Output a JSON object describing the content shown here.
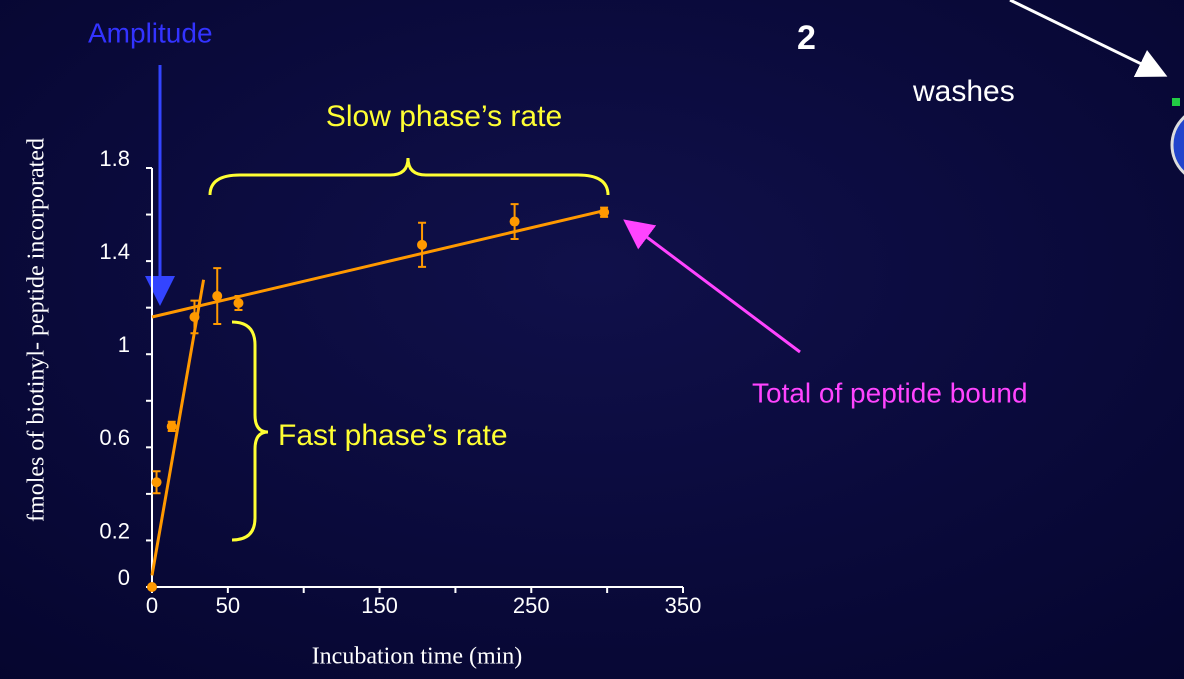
{
  "chart_data": {
    "type": "scatter",
    "xlabel": "Incubation time (min)",
    "ylabel": "fmoles of biotinyl- peptide incorporated",
    "xlim": [
      0,
      350
    ],
    "xticks": [
      0,
      50,
      150,
      250,
      350
    ],
    "xminor": [
      100,
      200,
      300
    ],
    "ylim": [
      0,
      1.8
    ],
    "yticks": [
      0,
      0.2,
      0.6,
      1,
      1.4,
      1.8
    ],
    "yminor": [
      0.4,
      0.8,
      1.2,
      1.6
    ],
    "series": [
      {
        "color": "#ff9900",
        "x": [
          0,
          3,
          13,
          28,
          43,
          57,
          178,
          239,
          298
        ],
        "values": [
          0,
          0.45,
          0.69,
          1.16,
          1.25,
          1.22,
          1.47,
          1.57,
          1.61
        ],
        "errors": [
          0,
          0.047,
          0.02,
          0.07,
          0.12,
          0.03,
          0.095,
          0.075,
          0.02
        ]
      }
    ],
    "fits": [
      {
        "color": "#ff9900",
        "x": [
          0,
          300
        ],
        "values": [
          1.16,
          1.62
        ]
      },
      {
        "color": "#ff9900",
        "x": [
          0,
          34
        ],
        "values": [
          0.05,
          1.32
        ]
      }
    ],
    "annotations": {
      "amplitude": "Amplitude",
      "slow": "Slow phase’s rate",
      "fast": "Fast phase’s rate",
      "total": "Total of peptide bound"
    }
  },
  "slide": {
    "number": "2",
    "step": "washes"
  }
}
